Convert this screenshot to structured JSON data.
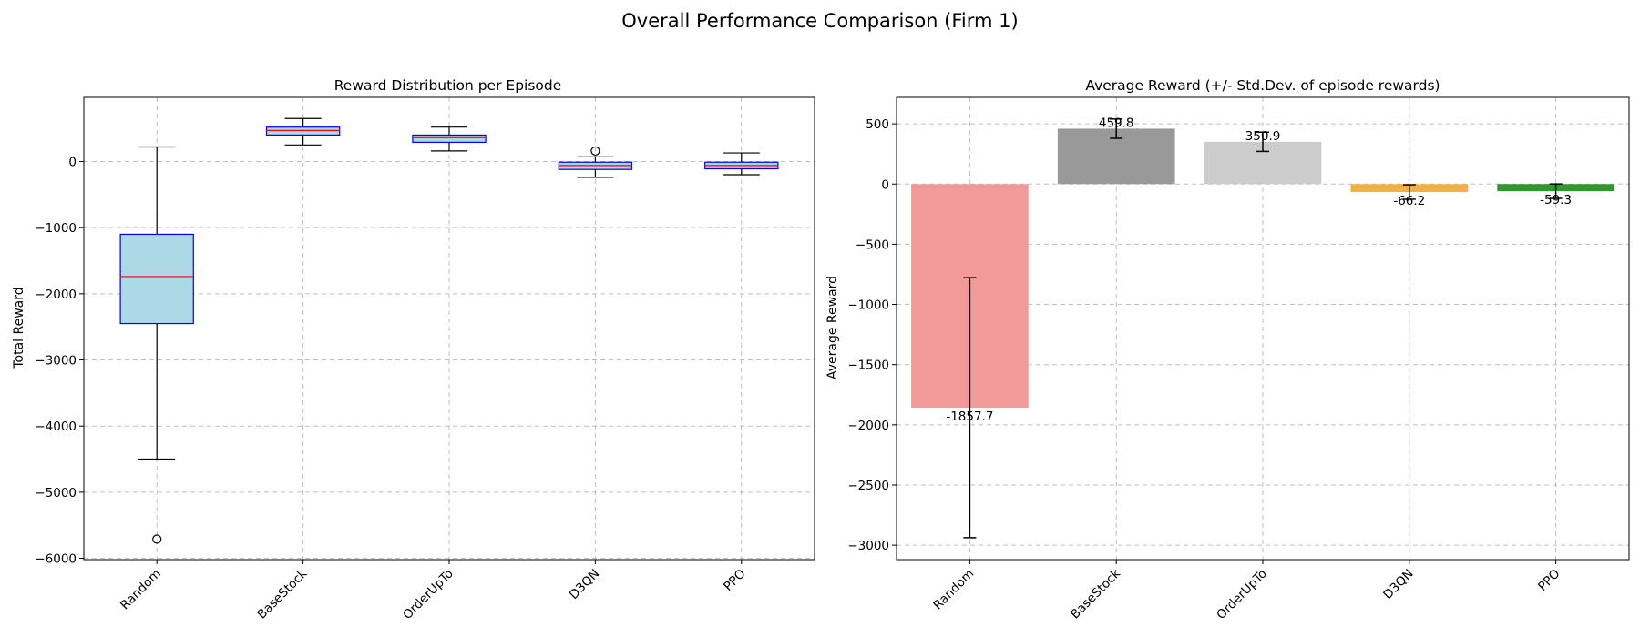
{
  "suptitle": "Overall Performance Comparison (Firm 1)",
  "chart_data": [
    {
      "type": "box",
      "title": "Reward Distribution per Episode",
      "xlabel": "",
      "ylabel": "Total Reward",
      "categories": [
        "Random",
        "BaseStock",
        "OrderUpTo",
        "D3QN",
        "PPO"
      ],
      "boxes": [
        {
          "whisker_low": -4500,
          "q1": -2450,
          "median": -1740,
          "q3": -1100,
          "whisker_high": 220,
          "outliers": [
            -5710
          ]
        },
        {
          "whisker_low": 250,
          "q1": 400,
          "median": 470,
          "q3": 520,
          "whisker_high": 650,
          "outliers": []
        },
        {
          "whisker_low": 160,
          "q1": 290,
          "median": 360,
          "q3": 400,
          "whisker_high": 520,
          "outliers": []
        },
        {
          "whisker_low": -240,
          "q1": -120,
          "median": -60,
          "q3": -10,
          "whisker_high": 70,
          "outliers": [
            160
          ]
        },
        {
          "whisker_low": -200,
          "q1": -110,
          "median": -60,
          "q3": -10,
          "whisker_high": 130,
          "outliers": []
        }
      ],
      "ylim": [
        -6020,
        970
      ],
      "yticks": [
        -6000,
        -5000,
        -4000,
        -3000,
        -2000,
        -1000,
        0
      ],
      "grid": true,
      "colors": {
        "box_fill": "#add8e6",
        "box_edge": "#0000ff",
        "median": "#ff0000",
        "whisker": "#000000"
      }
    },
    {
      "type": "bar",
      "title": "Average Reward (+/- Std.Dev. of episode rewards)",
      "xlabel": "",
      "ylabel": "Average Reward",
      "categories": [
        "Random",
        "BaseStock",
        "OrderUpTo",
        "D3QN",
        "PPO"
      ],
      "values": [
        -1857.7,
        459.8,
        350.9,
        -66.2,
        -59.3
      ],
      "value_labels": [
        "-1857.7",
        "459.8",
        "350.9",
        "-66.2",
        "-59.3"
      ],
      "errors": [
        1080,
        80,
        80,
        60,
        60
      ],
      "ylim": [
        -3120,
        720
      ],
      "yticks": [
        -3000,
        -2500,
        -2000,
        -1500,
        -1000,
        -500,
        0,
        500
      ],
      "grid": true,
      "colors": [
        "#f29a9a",
        "#999999",
        "#cccccc",
        "#f5b041",
        "#2e9a2e"
      ]
    }
  ]
}
